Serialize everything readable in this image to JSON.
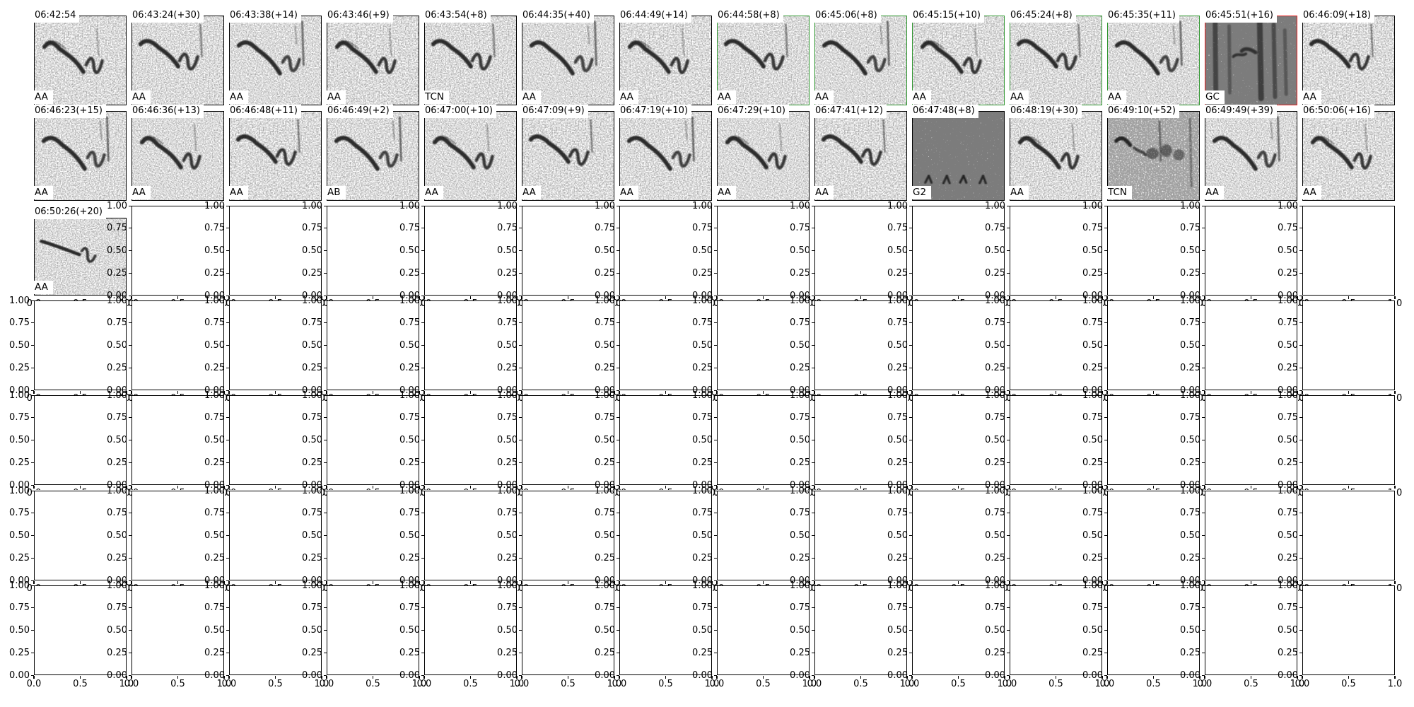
{
  "chart_data": {
    "type": "heatmap",
    "title": "",
    "description": "Grid of spectrogram subplots (7 rows x 14 cols). First 29 cells show call spectrograms with timestamp titles and class labels; remaining axes are empty matplotlib defaults with 0-1 ranges and overlapping tick labels.",
    "grid": {
      "rows": 7,
      "cols": 14
    },
    "empty_axes": {
      "xlim": [
        0.0,
        1.0
      ],
      "ylim": [
        0.0,
        1.0
      ],
      "y_ticks": [
        "1.00",
        "0.75",
        "0.50",
        "0.25",
        "0.00"
      ],
      "x_ticks": [
        "0.0",
        "0.5",
        "1.0"
      ],
      "grid_lines": false,
      "legend": "none"
    },
    "border_colors": {
      "black": "#000000",
      "green": "#2f962f",
      "red": "#ea1c1c"
    },
    "spectrogram_cells": [
      {
        "row": 0,
        "col": 0,
        "title": "06:42:54",
        "label": "AA",
        "border": "black",
        "texture": "whistle"
      },
      {
        "row": 0,
        "col": 1,
        "title": "06:43:24(+30)",
        "label": "AA",
        "border": "black",
        "texture": "whistle"
      },
      {
        "row": 0,
        "col": 2,
        "title": "06:43:38(+14)",
        "label": "AA",
        "border": "black",
        "texture": "whistle"
      },
      {
        "row": 0,
        "col": 3,
        "title": "06:43:46(+9)",
        "label": "AA",
        "border": "black",
        "texture": "whistle"
      },
      {
        "row": 0,
        "col": 4,
        "title": "06:43:54(+8)",
        "label": "TCN",
        "border": "black",
        "texture": "whistle"
      },
      {
        "row": 0,
        "col": 5,
        "title": "06:44:35(+40)",
        "label": "AA",
        "border": "black",
        "texture": "whistle"
      },
      {
        "row": 0,
        "col": 6,
        "title": "06:44:49(+14)",
        "label": "AA",
        "border": "black",
        "texture": "whistle"
      },
      {
        "row": 0,
        "col": 7,
        "title": "06:44:58(+8)",
        "label": "AA",
        "border": "green",
        "texture": "whistle"
      },
      {
        "row": 0,
        "col": 8,
        "title": "06:45:06(+8)",
        "label": "AA",
        "border": "green",
        "texture": "whistle"
      },
      {
        "row": 0,
        "col": 9,
        "title": "06:45:15(+10)",
        "label": "AA",
        "border": "green",
        "texture": "whistle"
      },
      {
        "row": 0,
        "col": 10,
        "title": "06:45:24(+8)",
        "label": "AA",
        "border": "green",
        "texture": "whistle"
      },
      {
        "row": 0,
        "col": 11,
        "title": "06:45:35(+11)",
        "label": "AA",
        "border": "green",
        "texture": "whistle"
      },
      {
        "row": 0,
        "col": 12,
        "title": "06:45:51(+16)",
        "label": "GC",
        "border": "red",
        "texture": "bars"
      },
      {
        "row": 0,
        "col": 13,
        "title": "06:46:09(+18)",
        "label": "AA",
        "border": "black",
        "texture": "whistle"
      },
      {
        "row": 1,
        "col": 0,
        "title": "06:46:23(+15)",
        "label": "AA",
        "border": "black",
        "texture": "whistle"
      },
      {
        "row": 1,
        "col": 1,
        "title": "06:46:36(+13)",
        "label": "AA",
        "border": "black",
        "texture": "whistle"
      },
      {
        "row": 1,
        "col": 2,
        "title": "06:46:48(+11)",
        "label": "AA",
        "border": "black",
        "texture": "whistle"
      },
      {
        "row": 1,
        "col": 3,
        "title": "06:46:49(+2)",
        "label": "AB",
        "border": "black",
        "texture": "whistle"
      },
      {
        "row": 1,
        "col": 4,
        "title": "06:47:00(+10)",
        "label": "AA",
        "border": "black",
        "texture": "whistle"
      },
      {
        "row": 1,
        "col": 5,
        "title": "06:47:09(+9)",
        "label": "AA",
        "border": "black",
        "texture": "whistle"
      },
      {
        "row": 1,
        "col": 6,
        "title": "06:47:19(+10)",
        "label": "AA",
        "border": "black",
        "texture": "whistle"
      },
      {
        "row": 1,
        "col": 7,
        "title": "06:47:29(+10)",
        "label": "AA",
        "border": "black",
        "texture": "whistle"
      },
      {
        "row": 1,
        "col": 8,
        "title": "06:47:41(+12)",
        "label": "AA",
        "border": "black",
        "texture": "whistle"
      },
      {
        "row": 1,
        "col": 9,
        "title": "06:47:48(+8)",
        "label": "G2",
        "border": "black",
        "texture": "noise"
      },
      {
        "row": 1,
        "col": 10,
        "title": "06:48:19(+30)",
        "label": "AA",
        "border": "black",
        "texture": "whistle"
      },
      {
        "row": 1,
        "col": 11,
        "title": "06:49:10(+52)",
        "label": "TCN",
        "border": "black",
        "texture": "bars2"
      },
      {
        "row": 1,
        "col": 12,
        "title": "06:49:49(+39)",
        "label": "AA",
        "border": "black",
        "texture": "whistle"
      },
      {
        "row": 1,
        "col": 13,
        "title": "06:50:06(+16)",
        "label": "AA",
        "border": "black",
        "texture": "whistle"
      },
      {
        "row": 2,
        "col": 0,
        "title": "06:50:26(+20)",
        "label": "AA",
        "border": "black",
        "texture": "whistle-long"
      }
    ]
  }
}
